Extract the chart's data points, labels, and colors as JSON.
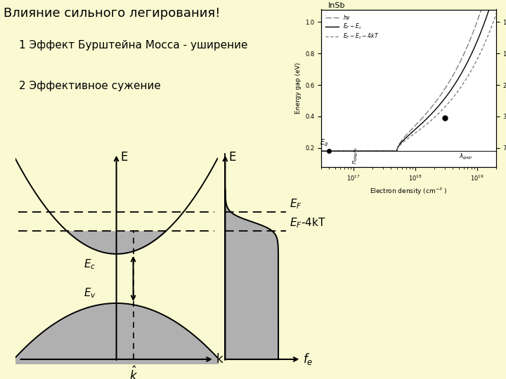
{
  "bg_color": "#FAFAD2",
  "title": "Влияние сильного легирования!",
  "line1": "1 Эффект Бурштейна Мосса - уширение",
  "line2": "2 Эффективное сужение",
  "gray_fill": "#B0B0B0",
  "Ec": 0.4,
  "Ev": -0.9,
  "EF": 1.5,
  "EF4kT": 1.0,
  "a_c": 0.28,
  "a_v": 0.16,
  "k_hat": 0.5,
  "xmin": -3.0,
  "xmax": 3.0,
  "ymin": -2.5,
  "ymax": 3.2,
  "kT_sigma": 0.12
}
